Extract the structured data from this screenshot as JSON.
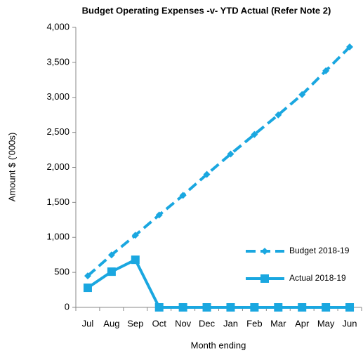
{
  "chart_data": {
    "type": "line",
    "title": "Budget Operating Expenses -v- YTD Actual (Refer Note 2)",
    "y_label": "Amount $ ('000s)",
    "x_label": "Month ending",
    "categories": [
      "Jul",
      "Aug",
      "Sep",
      "Oct",
      "Nov",
      "Dec",
      "Jan",
      "Feb",
      "Mar",
      "Apr",
      "May",
      "Jun"
    ],
    "series": [
      {
        "name": "Budget 2018-19",
        "color": "#1aa7e0",
        "style": "dashed",
        "marker": "diamond",
        "values": [
          450,
          750,
          1030,
          1320,
          1600,
          1900,
          2190,
          2470,
          2750,
          3040,
          3380,
          3720
        ]
      },
      {
        "name": "Actual 2018-19",
        "color": "#1aa7e0",
        "style": "solid",
        "marker": "square",
        "values": [
          280,
          510,
          680,
          0,
          0,
          0,
          0,
          0,
          0,
          0,
          0,
          0
        ]
      }
    ],
    "ylim": [
      0,
      4000
    ],
    "yticks": [
      0,
      {
        "value": 500,
        "label": "500"
      },
      {
        "value": 1000,
        "label": "1,000"
      },
      {
        "value": 1500,
        "label": "1,500"
      },
      {
        "value": 2000,
        "label": "2,000"
      },
      {
        "value": 2500,
        "label": "2,500"
      },
      {
        "value": 3000,
        "label": "3,000"
      },
      {
        "value": 3500,
        "label": "3,500"
      },
      {
        "value": 4000,
        "label": "4,000"
      }
    ],
    "grid": false,
    "legend": "lower right"
  }
}
